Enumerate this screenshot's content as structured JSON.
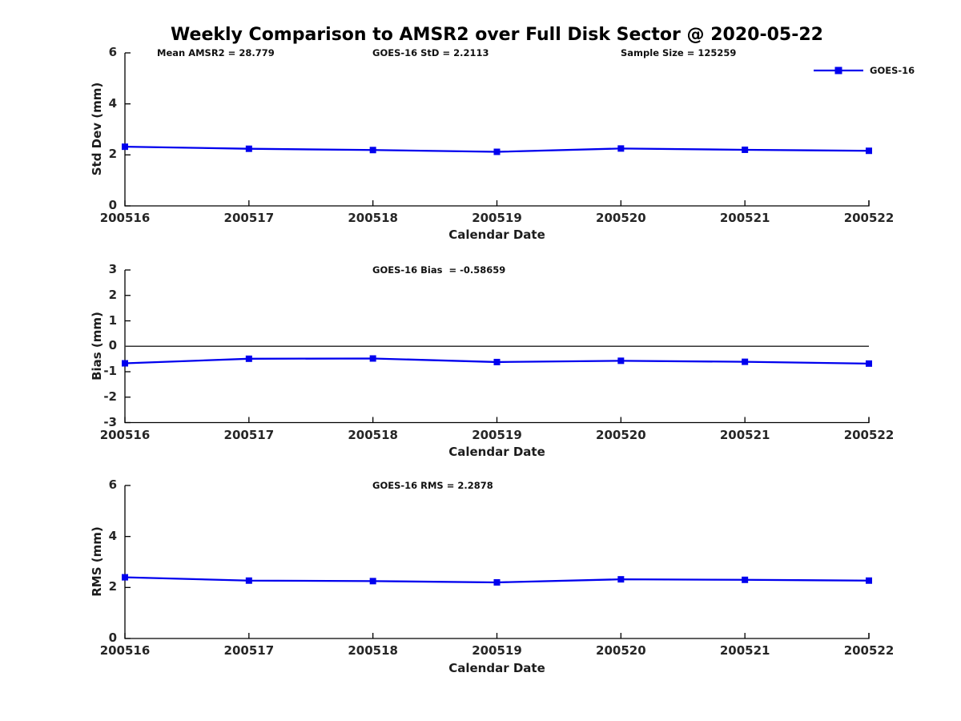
{
  "title": "Weekly Comparison to AMSR2 over Full Disk Sector @ 2020-05-22",
  "legend": {
    "label": "GOES-16"
  },
  "colors": {
    "series": "#0000ee",
    "axis": "#000000",
    "zero_line": "#333333",
    "text": "#262626"
  },
  "chart_data": [
    {
      "type": "line",
      "name": "std-dev-panel",
      "annotations": [
        "Mean AMSR2 = 28.779",
        "GOES-16 StD = 2.2113",
        "Sample Size = 125259"
      ],
      "categories": [
        "200516",
        "200517",
        "200518",
        "200519",
        "200520",
        "200521",
        "200522"
      ],
      "series": [
        {
          "name": "GOES-16",
          "values": [
            2.32,
            2.24,
            2.19,
            2.12,
            2.25,
            2.2,
            2.16
          ]
        }
      ],
      "xlabel": "Calendar Date",
      "ylabel": "Std Dev (mm)",
      "ylim": [
        0,
        6
      ],
      "yticks": [
        0,
        2,
        4,
        6
      ],
      "zero_line": false,
      "grid": false,
      "legend_position": "top-right"
    },
    {
      "type": "line",
      "name": "bias-panel",
      "annotations": [
        "GOES-16 Bias  = -0.58659"
      ],
      "categories": [
        "200516",
        "200517",
        "200518",
        "200519",
        "200520",
        "200521",
        "200522"
      ],
      "series": [
        {
          "name": "GOES-16",
          "values": [
            -0.67,
            -0.49,
            -0.48,
            -0.62,
            -0.57,
            -0.61,
            -0.68
          ]
        }
      ],
      "xlabel": "Calendar Date",
      "ylabel": "Bias (mm)",
      "ylim": [
        -3,
        3
      ],
      "yticks": [
        3,
        2,
        1,
        0,
        -1,
        -2,
        -3
      ],
      "zero_line": true,
      "grid": false
    },
    {
      "type": "line",
      "name": "rms-panel",
      "annotations": [
        "GOES-16 RMS = 2.2878"
      ],
      "categories": [
        "200516",
        "200517",
        "200518",
        "200519",
        "200520",
        "200521",
        "200522"
      ],
      "series": [
        {
          "name": "GOES-16",
          "values": [
            2.4,
            2.27,
            2.25,
            2.2,
            2.32,
            2.3,
            2.27
          ]
        }
      ],
      "xlabel": "Calendar Date",
      "ylabel": "RMS (mm)",
      "ylim": [
        0,
        6
      ],
      "yticks": [
        0,
        2,
        4,
        6
      ],
      "zero_line": false,
      "grid": false
    }
  ]
}
